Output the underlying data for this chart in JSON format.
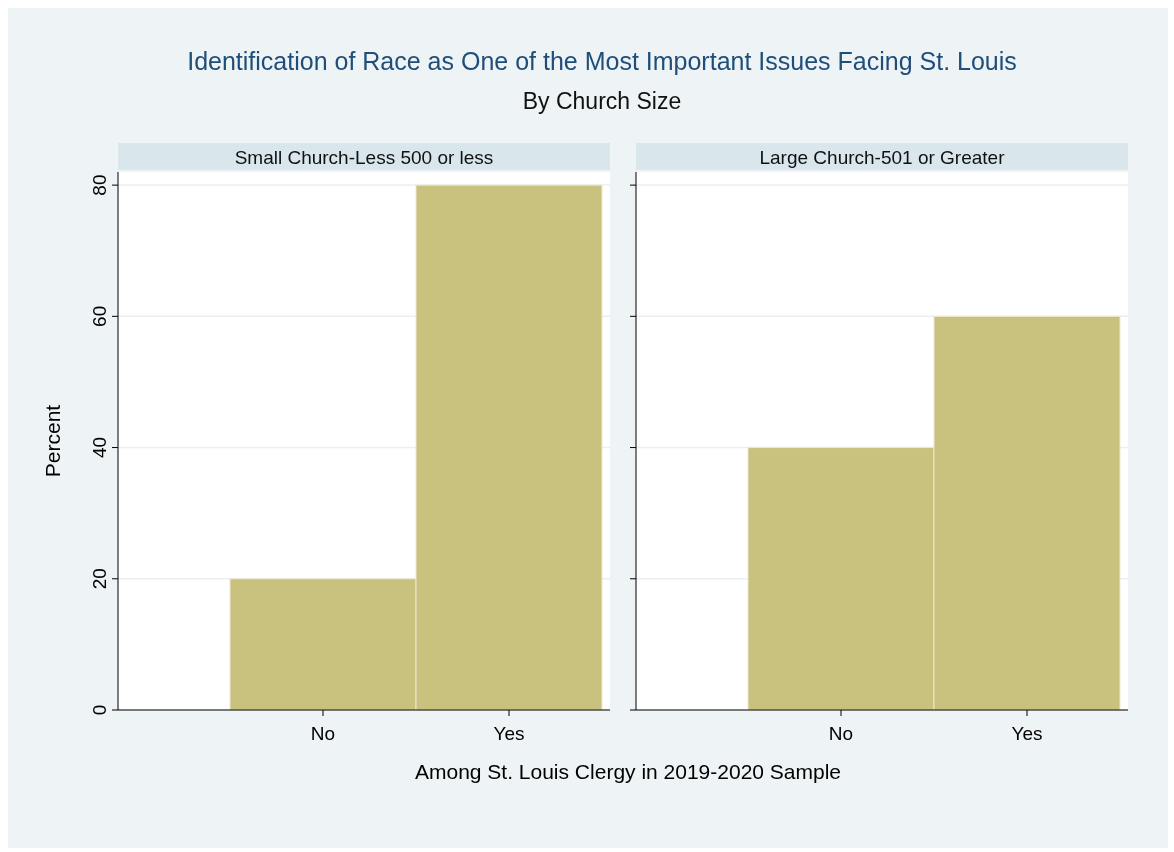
{
  "chart_data": [
    {
      "type": "other",
      "title": "Identification of Race as One of the Most Important Issues Facing St. Louis",
      "subtitle": "By Church Size"
    },
    {
      "type": "bar",
      "title": "Small Church-Less 500 or less",
      "xlabel": "Among St. Louis Clergy in 2019-2020 Sample",
      "ylabel": "Percent",
      "categories": [
        "No",
        "Yes"
      ],
      "values": [
        20,
        80
      ],
      "color": "#c9c17e",
      "ylim": [
        0,
        82
      ],
      "yticks": [
        0,
        20,
        40,
        60,
        80
      ],
      "grid": "y"
    },
    {
      "type": "bar",
      "title": "Large Church-501 or Greater",
      "categories": [
        "No",
        "Yes"
      ],
      "values": [
        40,
        60
      ],
      "color": "#c9c17e",
      "ylim": [
        0,
        82
      ],
      "yticks": [
        0,
        20,
        40,
        60,
        80
      ],
      "grid": "y",
      "tick_labels": "x"
    }
  ]
}
